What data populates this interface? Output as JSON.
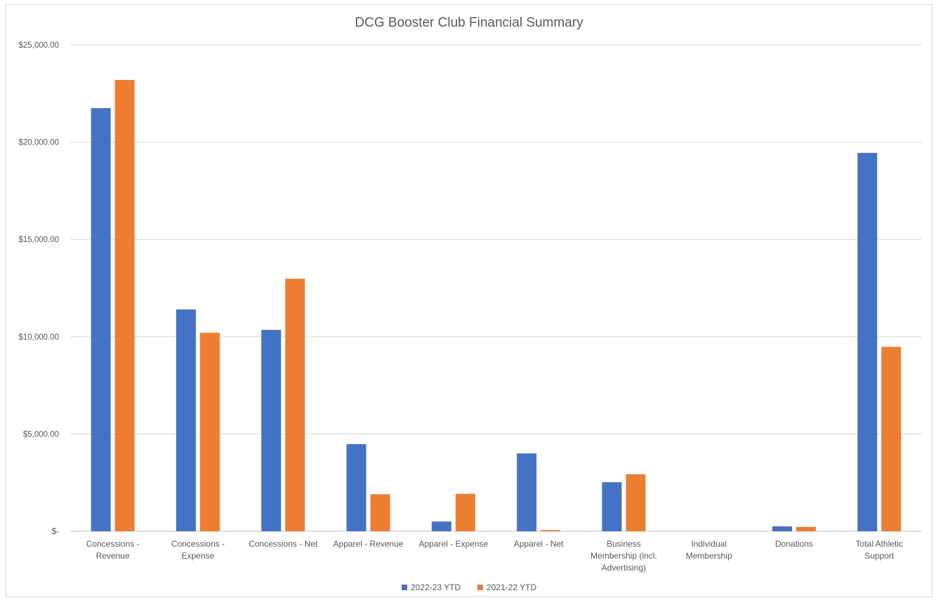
{
  "chart_data": {
    "type": "bar",
    "title": "DCG Booster Club Financial Summary",
    "xlabel": "",
    "ylabel": "",
    "ylim": [
      0,
      25000
    ],
    "yticks": [
      0,
      5000,
      10000,
      15000,
      20000,
      25000
    ],
    "ytick_labels": [
      "$-",
      "$5,000.00",
      "$10,000.00",
      "$15,000.00",
      "$20,000.00",
      "$25,000.00"
    ],
    "grid": true,
    "legend_position": "bottom",
    "categories": [
      [
        "Concessions -",
        "Revenue"
      ],
      [
        "Concessions -",
        "Expense"
      ],
      [
        "Concessions - Net"
      ],
      [
        "Apparel - Revenue"
      ],
      [
        "Apparel - Expense"
      ],
      [
        "Apparel - Net"
      ],
      [
        "Business",
        "Membership (incl.",
        "Advertising)"
      ],
      [
        "Individual",
        "Membership"
      ],
      [
        "Donations"
      ],
      [
        "Total Athletic",
        "Support"
      ]
    ],
    "series": [
      {
        "name": "2022-23 YTD",
        "color": "#4472c4",
        "values": [
          21750,
          11400,
          10350,
          4480,
          500,
          4000,
          2520,
          0,
          250,
          19450
        ]
      },
      {
        "name": "2021-22 YTD",
        "color": "#ed7d31",
        "values": [
          23200,
          10200,
          12980,
          1900,
          1920,
          60,
          2930,
          0,
          220,
          9480
        ]
      }
    ]
  }
}
